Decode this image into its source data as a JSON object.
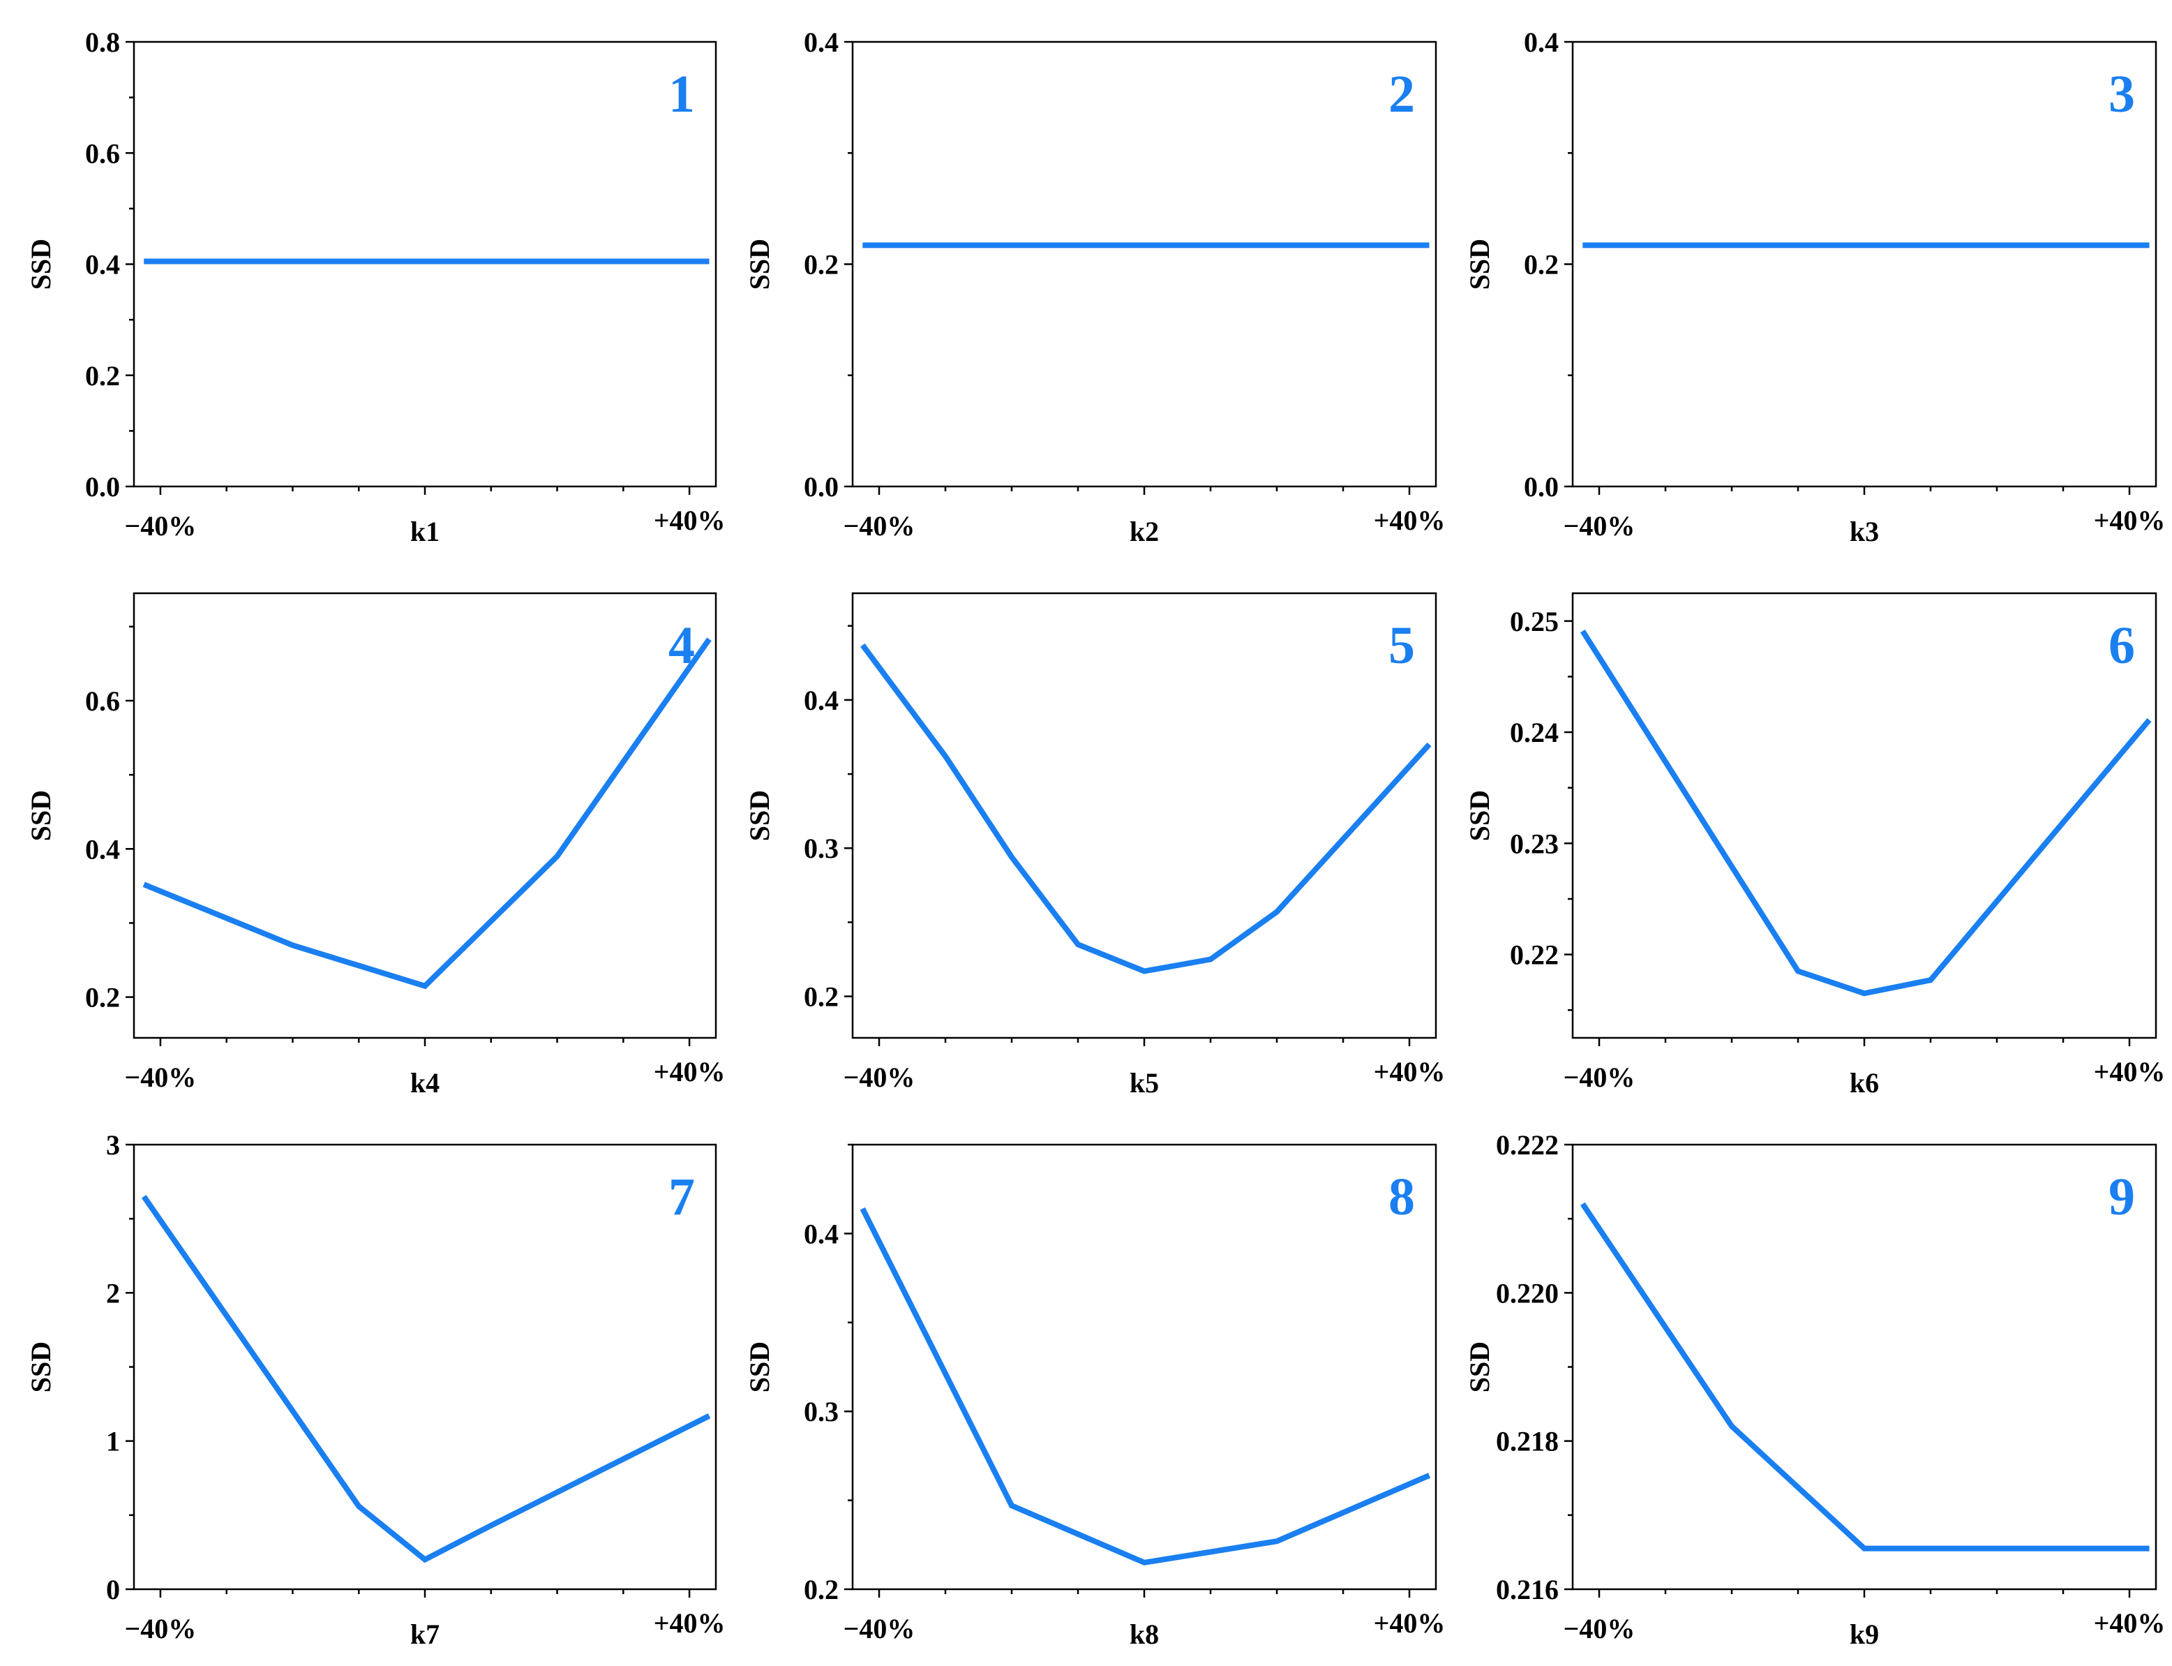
{
  "colors": {
    "series": "#1a7ff0",
    "axis": "#000000",
    "background": "#ffffff"
  },
  "chart_data": [
    {
      "type": "line",
      "panel": "1",
      "xlabel": "k1",
      "ylabel": "SSD",
      "x_tick_labels": [
        "−40%",
        "+40%"
      ],
      "ylim": [
        0,
        0.8
      ],
      "y_ticks": [
        0.0,
        0.2,
        0.4,
        0.6,
        0.8
      ],
      "y_tick_labels": [
        "0.0",
        "0.2",
        "0.4",
        "0.6",
        "0.8"
      ],
      "x": [
        -0.425,
        0.43
      ],
      "values": [
        0.405,
        0.405
      ]
    },
    {
      "type": "line",
      "panel": "2",
      "xlabel": "k2",
      "ylabel": "SSD",
      "x_tick_labels": [
        "−40%",
        "+40%"
      ],
      "ylim": [
        0,
        0.4
      ],
      "y_ticks": [
        0.0,
        0.2,
        0.4
      ],
      "y_tick_labels": [
        "0.0",
        "0.2",
        "0.4"
      ],
      "x": [
        -0.425,
        0.43
      ],
      "values": [
        0.217,
        0.217
      ]
    },
    {
      "type": "line",
      "panel": "3",
      "xlabel": "k3",
      "ylabel": "SSD",
      "x_tick_labels": [
        "−40%",
        "+40%"
      ],
      "ylim": [
        0,
        0.4
      ],
      "y_ticks": [
        0.0,
        0.2,
        0.4
      ],
      "y_tick_labels": [
        "0.0",
        "0.2",
        "0.4"
      ],
      "x": [
        -0.425,
        0.43
      ],
      "values": [
        0.217,
        0.217
      ]
    },
    {
      "type": "line",
      "panel": "4",
      "xlabel": "k4",
      "ylabel": "SSD",
      "x_tick_labels": [
        "−40%",
        "+40%"
      ],
      "ylim": [
        0.145,
        0.745
      ],
      "y_ticks": [
        0.2,
        0.4,
        0.6
      ],
      "y_tick_labels": [
        "0.2",
        "0.4",
        "0.6"
      ],
      "x": [
        -0.425,
        -0.2,
        0.0,
        0.2,
        0.43
      ],
      "values": [
        0.352,
        0.27,
        0.215,
        0.39,
        0.683
      ]
    },
    {
      "type": "line",
      "panel": "5",
      "xlabel": "k5",
      "ylabel": "SSD",
      "x_tick_labels": [
        "−40%",
        "+40%"
      ],
      "ylim": [
        0.172,
        0.472
      ],
      "y_ticks": [
        0.2,
        0.3,
        0.4
      ],
      "y_tick_labels": [
        "0.2",
        "0.3",
        "0.4"
      ],
      "x": [
        -0.425,
        -0.3,
        -0.2,
        -0.1,
        0.0,
        0.1,
        0.2,
        0.43
      ],
      "values": [
        0.437,
        0.362,
        0.294,
        0.235,
        0.217,
        0.225,
        0.257,
        0.37
      ]
    },
    {
      "type": "line",
      "panel": "6",
      "xlabel": "k6",
      "ylabel": "SSD",
      "x_tick_labels": [
        "−40%",
        "+40%"
      ],
      "ylim": [
        0.2125,
        0.2525
      ],
      "y_ticks": [
        0.22,
        0.23,
        0.24,
        0.25
      ],
      "y_tick_labels": [
        "0.22",
        "0.23",
        "0.24",
        "0.25"
      ],
      "x": [
        -0.425,
        -0.1,
        0.0,
        0.1,
        0.43
      ],
      "values": [
        0.2491,
        0.2185,
        0.2165,
        0.2177,
        0.2411
      ]
    },
    {
      "type": "line",
      "panel": "7",
      "xlabel": "k7",
      "ylabel": "SSD",
      "x_tick_labels": [
        "−40%",
        "+40%"
      ],
      "ylim": [
        0,
        3
      ],
      "y_ticks": [
        0,
        1,
        2,
        3
      ],
      "y_tick_labels": [
        "0",
        "1",
        "2",
        "3"
      ],
      "x": [
        -0.425,
        -0.1,
        0.0,
        0.1,
        0.43
      ],
      "values": [
        2.65,
        0.56,
        0.2,
        0.43,
        1.17
      ]
    },
    {
      "type": "line",
      "panel": "8",
      "xlabel": "k8",
      "ylabel": "SSD",
      "x_tick_labels": [
        "−40%",
        "+40%"
      ],
      "ylim": [
        0.2,
        0.45
      ],
      "y_ticks": [
        0.2,
        0.3,
        0.4
      ],
      "y_tick_labels": [
        "0.2",
        "0.3",
        "0.4"
      ],
      "x": [
        -0.425,
        -0.2,
        0.0,
        0.2,
        0.43
      ],
      "values": [
        0.414,
        0.247,
        0.215,
        0.227,
        0.264
      ]
    },
    {
      "type": "line",
      "panel": "9",
      "xlabel": "k9",
      "ylabel": "SSD",
      "x_tick_labels": [
        "−40%",
        "+40%"
      ],
      "ylim": [
        0.216,
        0.222
      ],
      "y_ticks": [
        0.216,
        0.218,
        0.22,
        0.222
      ],
      "y_tick_labels": [
        "0.216",
        "0.218",
        "0.220",
        "0.222"
      ],
      "x": [
        -0.425,
        -0.2,
        0.0,
        0.43
      ],
      "values": [
        0.2212,
        0.2182,
        0.21655,
        0.21655
      ]
    }
  ]
}
